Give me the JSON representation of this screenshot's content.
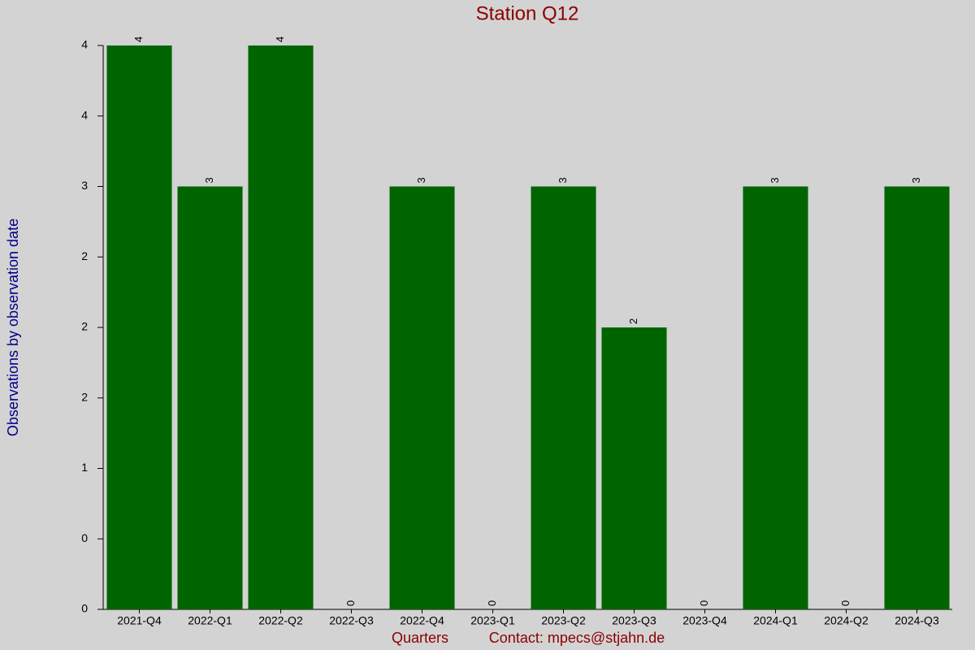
{
  "chart_data": {
    "type": "bar",
    "title": "Station Q12",
    "x_label": "Quarters",
    "note": "Contact: mpecs@stjahn.de",
    "y_label": "Observations by observation date",
    "categories": [
      "2021-Q4",
      "2022-Q1",
      "2022-Q2",
      "2022-Q3",
      "2022-Q4",
      "2023-Q1",
      "2023-Q2",
      "2023-Q3",
      "2023-Q4",
      "2024-Q1",
      "2024-Q2",
      "2024-Q3"
    ],
    "values": [
      4,
      3,
      4,
      0,
      3,
      0,
      3,
      2,
      0,
      3,
      0,
      3
    ],
    "color": "#006400",
    "ylim": [
      0,
      4
    ],
    "yticks": [
      0,
      {
        "value": 0.5,
        "label": "0"
      },
      1,
      {
        "value": 1.5,
        "label": "2"
      },
      2,
      {
        "value": 2.5,
        "label": "2"
      },
      3,
      {
        "value": 3.5,
        "label": "4"
      },
      4
    ]
  }
}
